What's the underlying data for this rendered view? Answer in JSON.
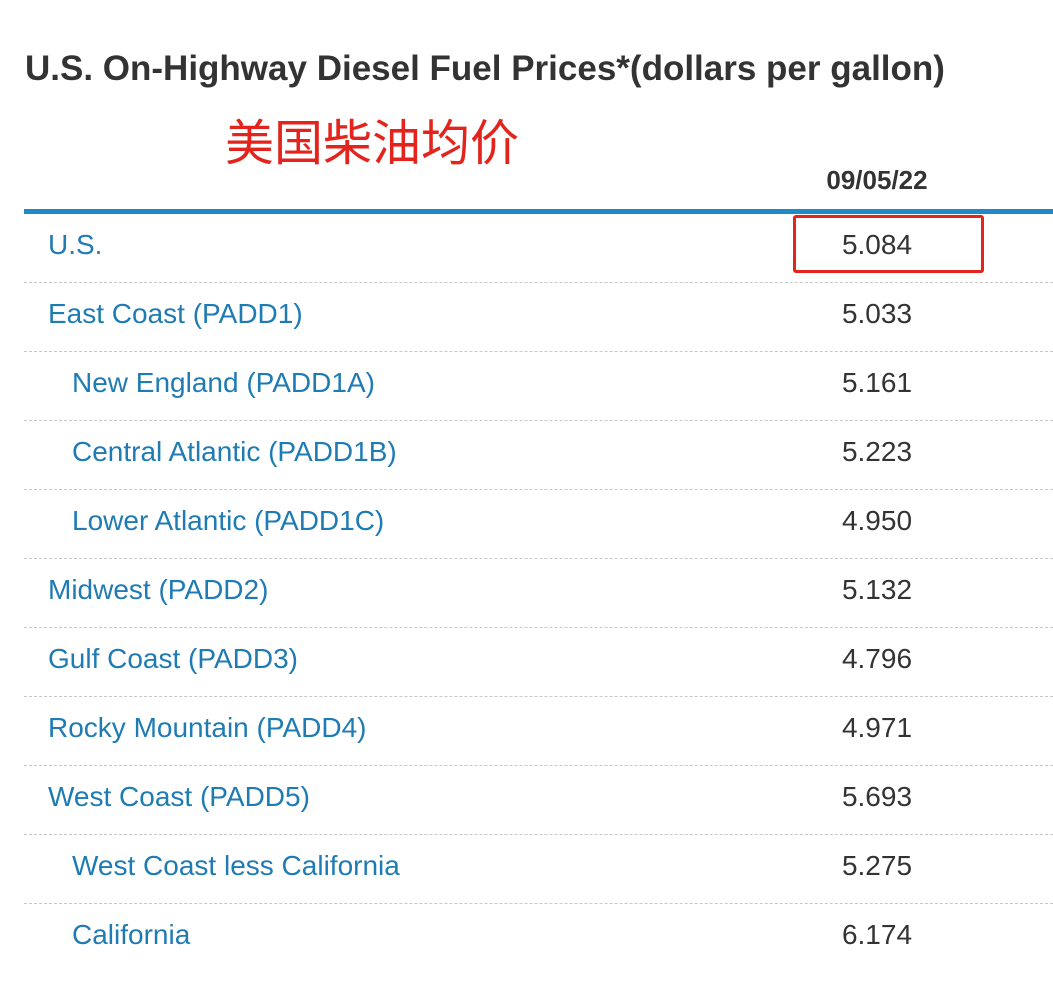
{
  "title": "U.S. On-Highway Diesel Fuel Prices*(dollars per gallon)",
  "annotation": "美国柴油均价",
  "column_header": "09/05/22",
  "colors": {
    "header_rule": "#1f8ac5",
    "link_text": "#1f7bb3",
    "annotation_red": "#e3231c",
    "value_text": "#333333"
  },
  "rows": [
    {
      "label": "U.S.",
      "value": "5.084",
      "level": 0,
      "highlighted": true
    },
    {
      "label": "East Coast (PADD1)",
      "value": "5.033",
      "level": 0
    },
    {
      "label": "New England (PADD1A)",
      "value": "5.161",
      "level": 1
    },
    {
      "label": "Central Atlantic (PADD1B)",
      "value": "5.223",
      "level": 1
    },
    {
      "label": "Lower Atlantic (PADD1C)",
      "value": "4.950",
      "level": 1
    },
    {
      "label": "Midwest (PADD2)",
      "value": "5.132",
      "level": 0
    },
    {
      "label": "Gulf Coast (PADD3)",
      "value": "4.796",
      "level": 0
    },
    {
      "label": "Rocky Mountain (PADD4)",
      "value": "4.971",
      "level": 0
    },
    {
      "label": "West Coast (PADD5)",
      "value": "5.693",
      "level": 0
    },
    {
      "label": "West Coast less California",
      "value": "5.275",
      "level": 1
    },
    {
      "label": "California",
      "value": "6.174",
      "level": 1
    }
  ]
}
